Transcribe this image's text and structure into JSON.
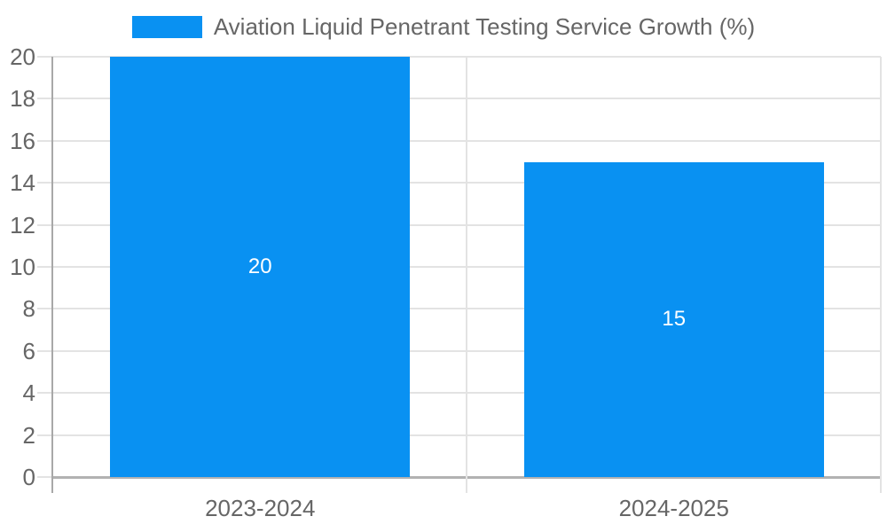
{
  "chart_data": {
    "type": "bar",
    "legend_label": "Aviation Liquid Penetrant Testing Service Growth (%)",
    "categories": [
      "2023-2024",
      "2024-2025"
    ],
    "values": [
      20,
      15
    ],
    "value_labels": [
      "20",
      "15"
    ],
    "yticks": [
      0,
      2,
      4,
      6,
      8,
      10,
      12,
      14,
      16,
      18,
      20
    ],
    "ylim": [
      0,
      20
    ],
    "grid": true,
    "legend_position": "top",
    "colors": {
      "bar": "#0991f2",
      "gridline": "#e3e3e3",
      "y_axis_line": "#a8a8a8",
      "baseline": "#b2b2b2",
      "tick_label": "#666666",
      "legend_text": "#666666",
      "value_label": "#ffffff",
      "background": "#ffffff"
    }
  }
}
